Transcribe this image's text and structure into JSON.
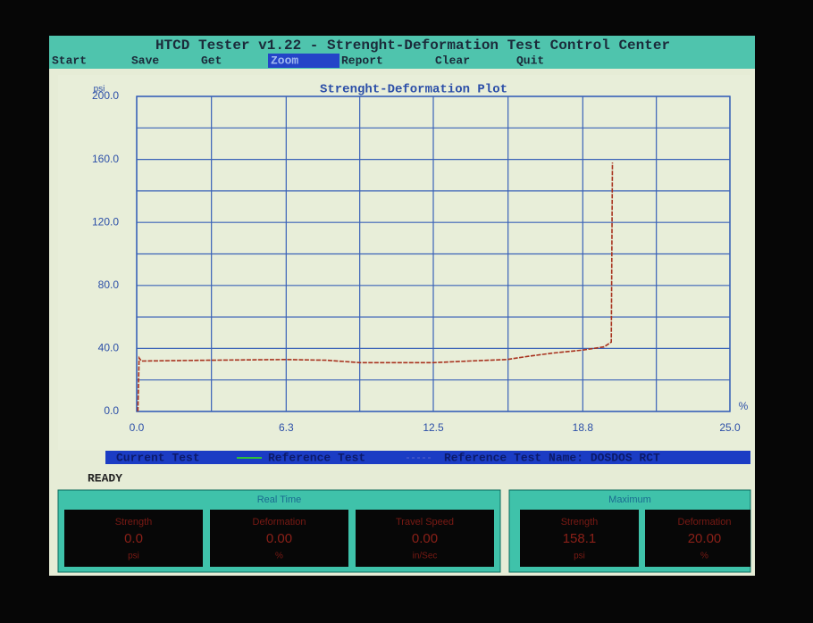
{
  "window": {
    "title": "HTCD Tester v1.22 - Strenght-Deformation Test Control Center",
    "menu": [
      "Start",
      "Save",
      "Get",
      "Zoom",
      "Report",
      "Clear",
      "Quit"
    ],
    "selected_menu_index": 3,
    "status": "READY",
    "reference_name": "Reference Test Name: DOSDOS RCT",
    "panels": [
      {
        "title": "Real Time",
        "fields": [
          {
            "label": "Strength",
            "value": "0.0",
            "unit": "psi"
          },
          {
            "label": "Deformation",
            "value": "0.00",
            "unit": "%"
          },
          {
            "label": "Travel Speed",
            "value": "0.00",
            "unit": "in/Sec"
          }
        ]
      },
      {
        "title": "Maximum",
        "fields": [
          {
            "label": "Strength",
            "value": "158.1",
            "unit": "psi"
          },
          {
            "label": "Deformation",
            "value": "20.00",
            "unit": "%"
          }
        ]
      }
    ]
  },
  "chart_data": {
    "type": "line",
    "title": "Strenght-Deformation Plot",
    "ylabel": "psi",
    "xlabel": "%",
    "xlim": [
      0,
      25
    ],
    "ylim": [
      0,
      200
    ],
    "xticks": [
      {
        "value": 0,
        "label": "0.0"
      },
      6.3,
      12.5,
      18.8,
      {
        "value": 25,
        "label": "25.0"
      }
    ],
    "yticks": [
      {
        "value": 0,
        "label": "0.0"
      },
      {
        "value": 40,
        "label": "40.0"
      },
      {
        "value": 80,
        "label": "80.0"
      },
      {
        "value": 120,
        "label": "120.0"
      },
      {
        "value": 160,
        "label": "160.0"
      },
      {
        "value": 200,
        "label": "200.0"
      }
    ],
    "grid": true,
    "minor_grid": true,
    "series": [
      {
        "name": "Current Test",
        "color": "#a8321e",
        "legend_color": "#2fbf3a",
        "x": [
          0.05,
          0.1,
          0.2,
          3,
          6.3,
          8,
          9.4,
          12.5,
          14,
          15.6,
          16.5,
          17.5,
          18.8,
          19.7,
          20.0,
          20.05
        ],
        "values": [
          0,
          34,
          32,
          32.5,
          33,
          32.5,
          31,
          31,
          32,
          33,
          35,
          37,
          39,
          41,
          44,
          158
        ]
      },
      {
        "name": "Reference Test",
        "color": "#3a50c8",
        "legend_color": "#3a50c8",
        "x": [],
        "values": []
      }
    ]
  }
}
